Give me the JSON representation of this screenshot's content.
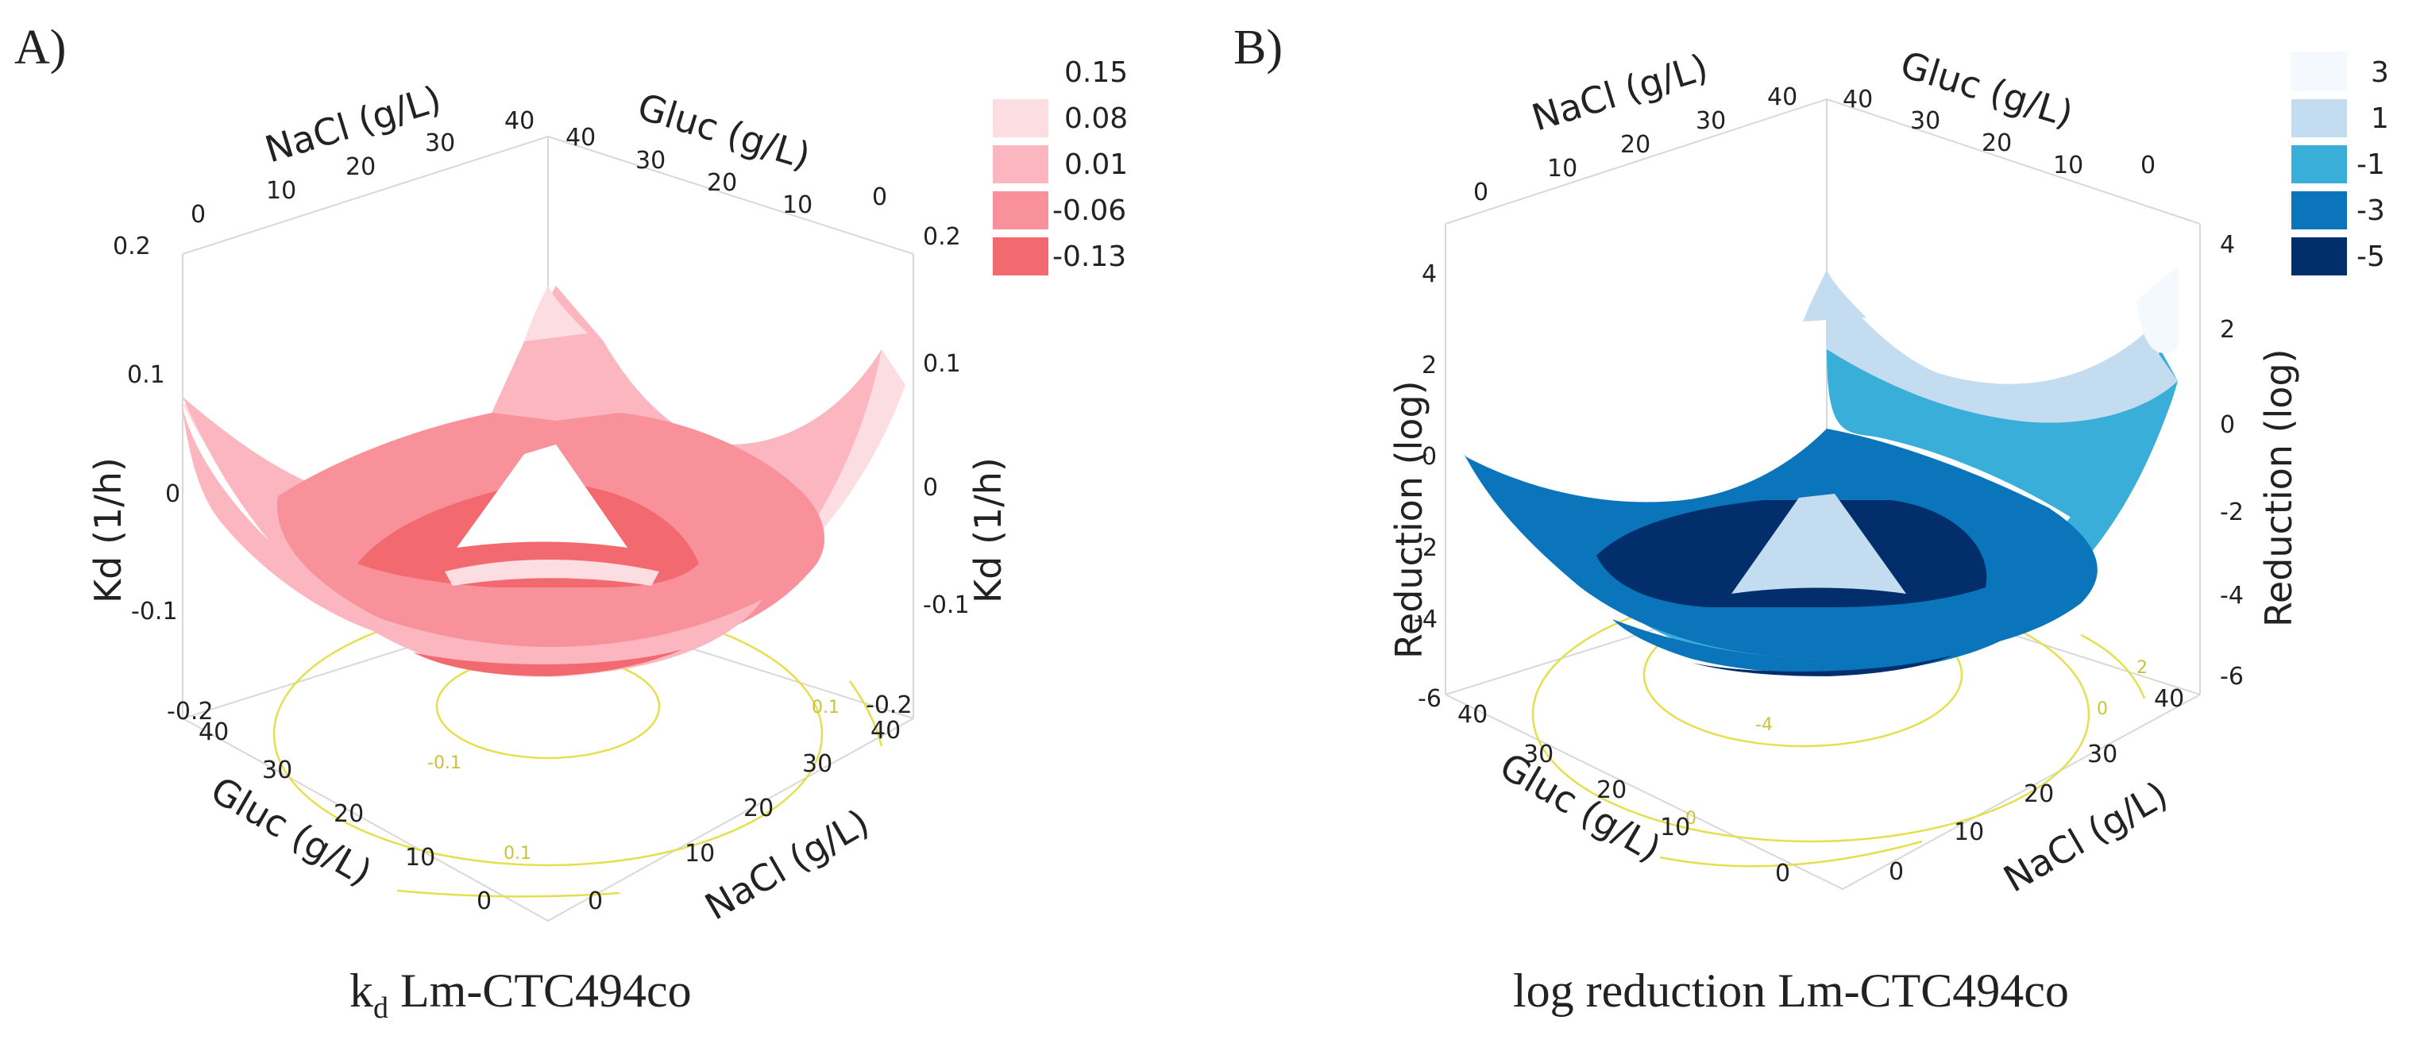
{
  "chart_data": [
    {
      "type": "surface",
      "panel_label": "A)",
      "caption_main": "k",
      "caption_sub": "d",
      "caption_rest": " Lm-CTC494co",
      "axis_titles": {
        "nacl_back": "NaCl (g/L)",
        "gluc_back": "Gluc (g/L)",
        "z_left": "Kd (1/h)",
        "z_right": "Kd (1/h)",
        "gluc_front": "Gluc (g/L)",
        "nacl_front": "NaCl (g/L)"
      },
      "x_axis": {
        "name": "Gluc (g/L)",
        "ticks": [
          "0",
          "10",
          "20",
          "30",
          "40"
        ],
        "range": [
          0,
          40
        ]
      },
      "y_axis": {
        "name": "NaCl (g/L)",
        "ticks": [
          "0",
          "10",
          "20",
          "30",
          "40"
        ],
        "range": [
          0,
          40
        ]
      },
      "z_axis": {
        "name": "Kd (1/h)",
        "ticks": [
          "0.2",
          "0.1",
          "0",
          "-0.1",
          "-0.2"
        ],
        "range": [
          -0.2,
          0.2
        ]
      },
      "legend": [
        {
          "label": "0.15",
          "color": "#ffffff"
        },
        {
          "label": "0.08",
          "color": "#fcdde2"
        },
        {
          "label": "0.01",
          "color": "#fbb6c0"
        },
        {
          "label": "-0.06",
          "color": "#f8919a"
        },
        {
          "label": "-0.13",
          "color": "#f26a6f"
        }
      ],
      "contour_labels": [
        "-0.1",
        "0.1",
        "0.1"
      ]
    },
    {
      "type": "surface",
      "panel_label": "B)",
      "caption_main": "log reduction Lm-CTC494co",
      "caption_sub": "",
      "caption_rest": "",
      "axis_titles": {
        "nacl_back": "NaCl (g/L)",
        "gluc_back": "Gluc (g/L)",
        "z_left": "Reduction (log)",
        "z_right": "Reduction (log)",
        "gluc_front": "Gluc (g/L)",
        "nacl_front": "NaCl (g/L)"
      },
      "x_axis": {
        "name": "Gluc (g/L)",
        "ticks": [
          "0",
          "10",
          "20",
          "30",
          "40"
        ],
        "range": [
          0,
          40
        ]
      },
      "y_axis": {
        "name": "NaCl (g/L)",
        "ticks": [
          "0",
          "10",
          "20",
          "30",
          "40"
        ],
        "range": [
          0,
          40
        ]
      },
      "z_axis": {
        "name": "Reduction (log)",
        "ticks": [
          "4",
          "2",
          "0",
          "-2",
          "-4",
          "-6"
        ],
        "range": [
          -6,
          4
        ]
      },
      "legend": [
        {
          "label": "3",
          "color": "#f4f9ff"
        },
        {
          "label": "1",
          "color": "#c4dcf0"
        },
        {
          "label": "-1",
          "color": "#39aed9"
        },
        {
          "label": "-3",
          "color": "#0b75bb"
        },
        {
          "label": "-5",
          "color": "#022f6b"
        }
      ],
      "contour_labels": [
        "-4",
        "0",
        "0",
        "2"
      ]
    }
  ]
}
